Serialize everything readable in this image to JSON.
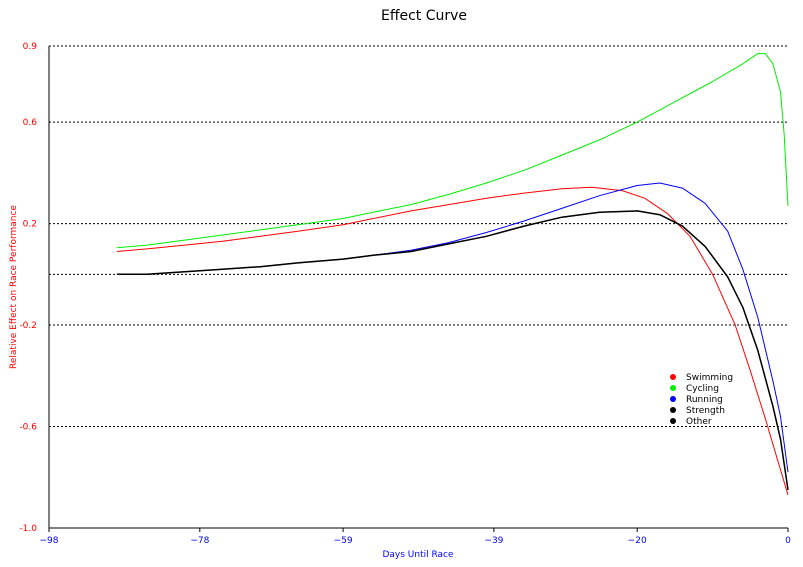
{
  "chart_data": {
    "type": "line",
    "title": "Effect Curve",
    "xlabel": "Days Until Race",
    "ylabel": "Relative Effect on Race Performance",
    "xlim": [
      -98,
      0
    ],
    "ylim": [
      -1.0,
      0.9
    ],
    "x_ticks": [
      -98,
      -78,
      -59,
      -39,
      -20,
      0
    ],
    "x_tick_labels": [
      "-98",
      "-78",
      "-59",
      "-39",
      "-20",
      "0"
    ],
    "y_ticks": [
      -1.0,
      -0.6,
      -0.2,
      0.2,
      0.6,
      0.9
    ],
    "y_tick_labels": [
      "-1.0",
      "-0.6",
      "-0.2",
      "0.2",
      "0.6",
      "0.9"
    ],
    "grid_lines_y": [
      -0.6,
      -0.2,
      0.0,
      0.2,
      0.6,
      0.9
    ],
    "grid": "dotted horizontal",
    "legend_position": "lower-right",
    "colors": {
      "title": "#000000",
      "y_axis_text": "#ff0000",
      "x_axis_text": "#0000ff"
    },
    "series": [
      {
        "name": "Swimming",
        "color": "#ff0000",
        "points": [
          [
            -89,
            0.09
          ],
          [
            -85,
            0.1
          ],
          [
            -80,
            0.115
          ],
          [
            -75,
            0.13
          ],
          [
            -70,
            0.15
          ],
          [
            -65,
            0.17
          ],
          [
            -59,
            0.195
          ],
          [
            -55,
            0.22
          ],
          [
            -50,
            0.25
          ],
          [
            -45,
            0.275
          ],
          [
            -40,
            0.3
          ],
          [
            -35,
            0.32
          ],
          [
            -30,
            0.337
          ],
          [
            -26,
            0.343
          ],
          [
            -22,
            0.33
          ],
          [
            -19,
            0.3
          ],
          [
            -16,
            0.24
          ],
          [
            -13,
            0.15
          ],
          [
            -10,
            0.0
          ],
          [
            -7,
            -0.2
          ],
          [
            -5,
            -0.38
          ],
          [
            -3,
            -0.57
          ],
          [
            -1.5,
            -0.72
          ],
          [
            0,
            -0.87
          ]
        ]
      },
      {
        "name": "Cycling",
        "color": "#00ee00",
        "points": [
          [
            -89,
            0.105
          ],
          [
            -85,
            0.115
          ],
          [
            -80,
            0.135
          ],
          [
            -75,
            0.155
          ],
          [
            -70,
            0.175
          ],
          [
            -65,
            0.195
          ],
          [
            -59,
            0.22
          ],
          [
            -55,
            0.245
          ],
          [
            -50,
            0.275
          ],
          [
            -45,
            0.315
          ],
          [
            -40,
            0.36
          ],
          [
            -35,
            0.41
          ],
          [
            -30,
            0.47
          ],
          [
            -25,
            0.53
          ],
          [
            -20,
            0.6
          ],
          [
            -15,
            0.68
          ],
          [
            -10,
            0.76
          ],
          [
            -6,
            0.83
          ],
          [
            -4,
            0.87
          ],
          [
            -3,
            0.87
          ],
          [
            -2,
            0.83
          ],
          [
            -1,
            0.72
          ],
          [
            -0.5,
            0.55
          ],
          [
            0,
            0.27
          ]
        ]
      },
      {
        "name": "Running",
        "color": "#0000ff",
        "points": [
          [
            -89,
            0.0
          ],
          [
            -85,
            0.0
          ],
          [
            -80,
            0.01
          ],
          [
            -75,
            0.02
          ],
          [
            -70,
            0.03
          ],
          [
            -65,
            0.045
          ],
          [
            -59,
            0.06
          ],
          [
            -55,
            0.075
          ],
          [
            -50,
            0.095
          ],
          [
            -45,
            0.125
          ],
          [
            -40,
            0.165
          ],
          [
            -35,
            0.21
          ],
          [
            -30,
            0.26
          ],
          [
            -25,
            0.31
          ],
          [
            -20,
            0.35
          ],
          [
            -17,
            0.36
          ],
          [
            -14,
            0.34
          ],
          [
            -11,
            0.28
          ],
          [
            -8,
            0.17
          ],
          [
            -6,
            0.02
          ],
          [
            -4,
            -0.17
          ],
          [
            -2,
            -0.42
          ],
          [
            -1,
            -0.56
          ],
          [
            0,
            -0.78
          ]
        ]
      },
      {
        "name": "Strength",
        "color": "#000000",
        "points": [
          [
            -89,
            0.0
          ],
          [
            -85,
            0.0
          ],
          [
            -80,
            0.01
          ],
          [
            -75,
            0.02
          ],
          [
            -70,
            0.03
          ],
          [
            -65,
            0.045
          ],
          [
            -59,
            0.06
          ],
          [
            -55,
            0.075
          ],
          [
            -50,
            0.09
          ],
          [
            -45,
            0.12
          ],
          [
            -40,
            0.15
          ],
          [
            -35,
            0.19
          ],
          [
            -30,
            0.225
          ],
          [
            -25,
            0.245
          ],
          [
            -20,
            0.25
          ],
          [
            -17,
            0.235
          ],
          [
            -14,
            0.19
          ],
          [
            -11,
            0.11
          ],
          [
            -8,
            -0.01
          ],
          [
            -6,
            -0.13
          ],
          [
            -4,
            -0.3
          ],
          [
            -2,
            -0.52
          ],
          [
            -1,
            -0.65
          ],
          [
            0,
            -0.85
          ]
        ]
      },
      {
        "name": "Other",
        "color": "#000000",
        "points": [
          [
            -89,
            0.0
          ],
          [
            -85,
            0.0
          ],
          [
            -80,
            0.01
          ],
          [
            -75,
            0.02
          ],
          [
            -70,
            0.03
          ],
          [
            -65,
            0.045
          ],
          [
            -59,
            0.06
          ],
          [
            -55,
            0.075
          ],
          [
            -50,
            0.09
          ],
          [
            -45,
            0.12
          ],
          [
            -40,
            0.15
          ],
          [
            -35,
            0.19
          ],
          [
            -30,
            0.225
          ],
          [
            -25,
            0.245
          ],
          [
            -20,
            0.25
          ],
          [
            -17,
            0.235
          ],
          [
            -14,
            0.19
          ],
          [
            -11,
            0.11
          ],
          [
            -8,
            -0.01
          ],
          [
            -6,
            -0.13
          ],
          [
            -4,
            -0.3
          ],
          [
            -2,
            -0.52
          ],
          [
            -1,
            -0.65
          ],
          [
            0,
            -0.85
          ]
        ]
      }
    ]
  }
}
